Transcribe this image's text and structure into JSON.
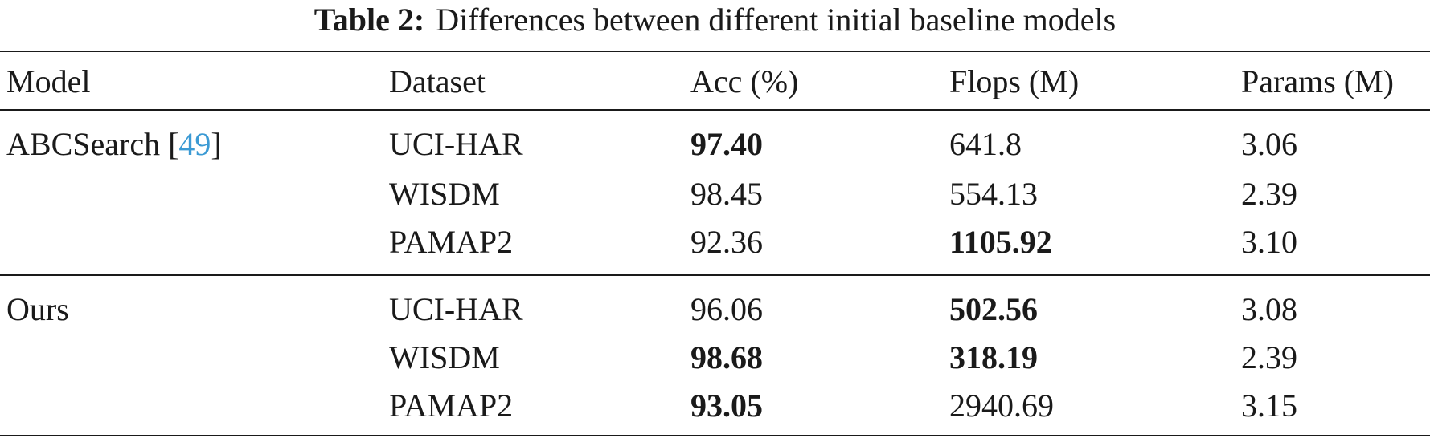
{
  "caption": {
    "label": "Table 2:",
    "text": "Differences between different initial baseline models"
  },
  "table": {
    "headers": [
      "Model",
      "Dataset",
      "Acc (%)",
      "Flops (M)",
      "Params (M)"
    ],
    "groups": [
      {
        "model": "ABCSearch [",
        "ref": "49",
        "model_close": "]",
        "rows": [
          {
            "dataset": "UCI-HAR",
            "acc": "97.40",
            "acc_bold": true,
            "flops": "641.8",
            "flops_bold": false,
            "params": "3.06"
          },
          {
            "dataset": "WISDM",
            "acc": "98.45",
            "acc_bold": false,
            "flops": "554.13",
            "flops_bold": false,
            "params": "2.39"
          },
          {
            "dataset": "PAMAP2",
            "acc": "92.36",
            "acc_bold": false,
            "flops": "1105.92",
            "flops_bold": true,
            "params": "3.10"
          }
        ]
      },
      {
        "model": "Ours",
        "rows": [
          {
            "dataset": "UCI-HAR",
            "acc": "96.06",
            "acc_bold": false,
            "flops": "502.56",
            "flops_bold": true,
            "params": "3.08"
          },
          {
            "dataset": "WISDM",
            "acc": "98.68",
            "acc_bold": true,
            "flops": "318.19",
            "flops_bold": true,
            "params": "2.39"
          },
          {
            "dataset": "PAMAP2",
            "acc": "93.05",
            "acc_bold": true,
            "flops": "2940.69",
            "flops_bold": false,
            "params": "3.15"
          }
        ]
      }
    ]
  }
}
